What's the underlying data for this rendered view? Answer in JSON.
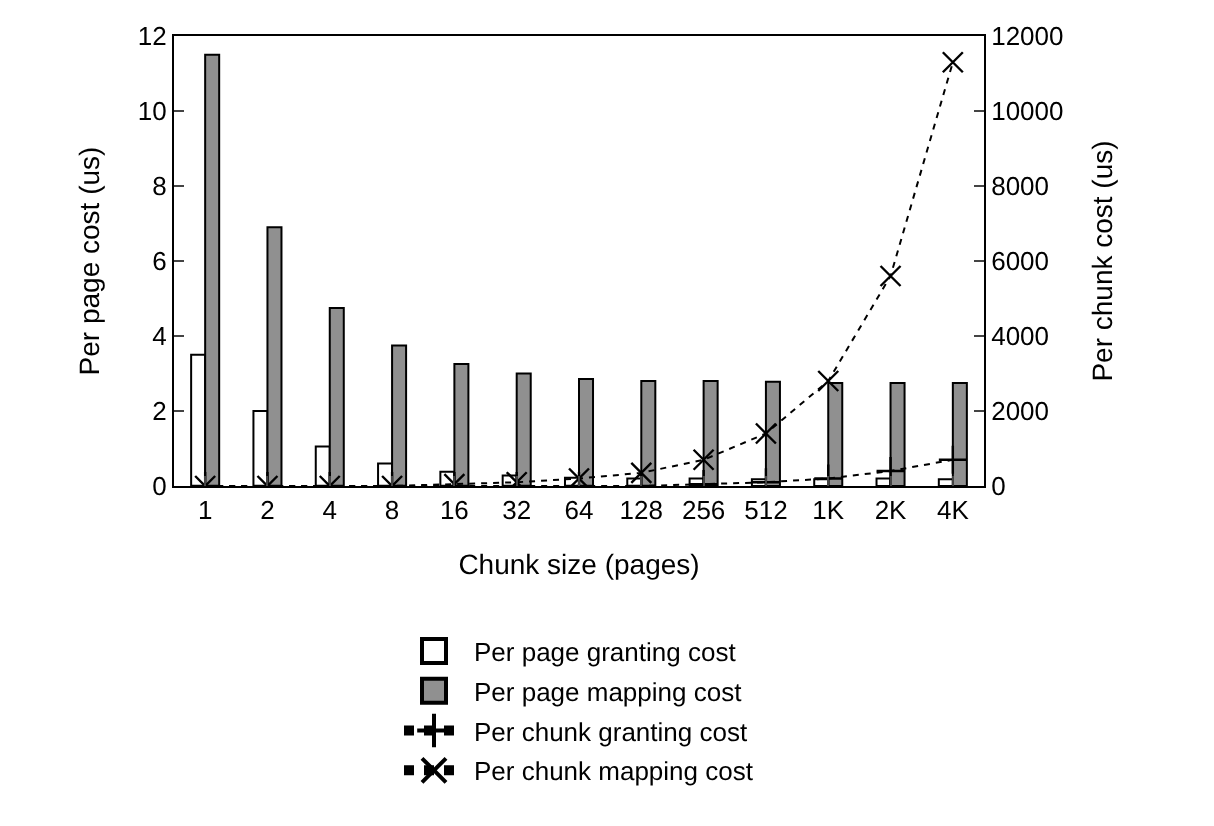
{
  "chart_data": {
    "type": "bar",
    "xlabel": "Chunk size (pages)",
    "ylabel": "Per page cost (us)",
    "y2label": "Per chunk cost (us)",
    "categories": [
      "1",
      "2",
      "4",
      "8",
      "16",
      "32",
      "64",
      "128",
      "256",
      "512",
      "1K",
      "2K",
      "4K"
    ],
    "series": [
      {
        "name": "Per page granting cost",
        "color": "#ffffff",
        "values": [
          3.5,
          2.0,
          1.05,
          0.6,
          0.38,
          0.28,
          0.22,
          0.2,
          0.2,
          0.18,
          0.18,
          0.2,
          0.18
        ]
      },
      {
        "name": "Per page mapping cost",
        "color": "#909090",
        "values": [
          11.5,
          6.9,
          4.75,
          3.75,
          3.25,
          3.0,
          2.85,
          2.8,
          2.8,
          2.78,
          2.75,
          2.75,
          2.75
        ]
      },
      {
        "name": "Per chunk granting cost",
        "type": "line",
        "axis": "y2",
        "color": "#000000",
        "marker": "cross",
        "line_style": "dotted",
        "values": [
          0,
          0,
          0,
          0,
          0,
          0,
          0,
          0,
          50,
          100,
          200,
          400,
          700
        ]
      },
      {
        "name": "Per chunk mapping cost",
        "type": "line",
        "axis": "y2",
        "color": "#000000",
        "marker": "x",
        "line_style": "dotted",
        "values": [
          0,
          0,
          0,
          0,
          50,
          100,
          200,
          350,
          700,
          1400,
          2800,
          5600,
          11300
        ]
      }
    ],
    "ylim": [
      0,
      12
    ],
    "yticks": [
      0,
      2,
      4,
      6,
      8,
      10,
      12
    ],
    "y2lim": [
      0,
      12000
    ],
    "y2ticks": [
      0,
      2000,
      4000,
      6000,
      8000,
      10000,
      12000
    ],
    "legend": "bottom"
  }
}
